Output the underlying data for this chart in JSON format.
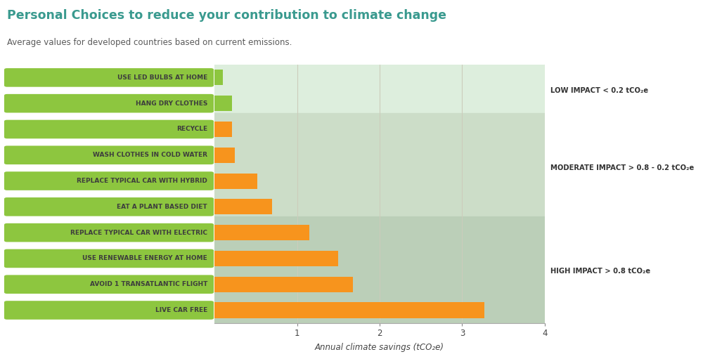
{
  "title": "Personal Choices to reduce your contribution to climate change",
  "subtitle": "Average values for developed countries based on current emissions.",
  "xlabel": "Annual climate savings (tCO₂e)",
  "categories": [
    "USE LED BULBS AT HOME",
    "HANG DRY CLOTHES",
    "RECYCLE",
    "WASH CLOTHES IN COLD WATER",
    "REPLACE TYPICAL CAR WITH HYBRID",
    "EAT A PLANT BASED DIET",
    "REPLACE TYPICAL CAR WITH ELECTRIC",
    "USE RENEWABLE ENERGY AT HOME",
    "AVOID 1 TRANSATLANTIC FLIGHT",
    "LIVE CAR FREE"
  ],
  "values": [
    0.1,
    0.21,
    0.21,
    0.25,
    0.52,
    0.7,
    1.15,
    1.5,
    1.68,
    3.27
  ],
  "bar_colors": [
    "#8dc63f",
    "#8dc63f",
    "#f7941d",
    "#f7941d",
    "#f7941d",
    "#f7941d",
    "#f7941d",
    "#f7941d",
    "#f7941d",
    "#f7941d"
  ],
  "label_bg_color": "#8dc63f",
  "label_text_color": "#3d3d3d",
  "title_color": "#3a9a8f",
  "subtitle_color": "#5a5a5a",
  "background_color": "#ffffff",
  "plot_bg_color": "#ffffff",
  "grid_color": "#ccccbb",
  "impact_low_color": "#ddeedd",
  "impact_mod_color": "#ccddc8",
  "impact_high_color": "#bbcfb8",
  "low_label": "LOW IMPACT < 0.2 tCO₂e",
  "mod_label": "MODERATE IMPACT > 0.8 - 0.2 tCO₂e",
  "high_label": "HIGH IMPACT > 0.8 tCO₂e",
  "xlim_data": [
    0,
    4
  ],
  "xticks": [
    1,
    2,
    3,
    4
  ]
}
